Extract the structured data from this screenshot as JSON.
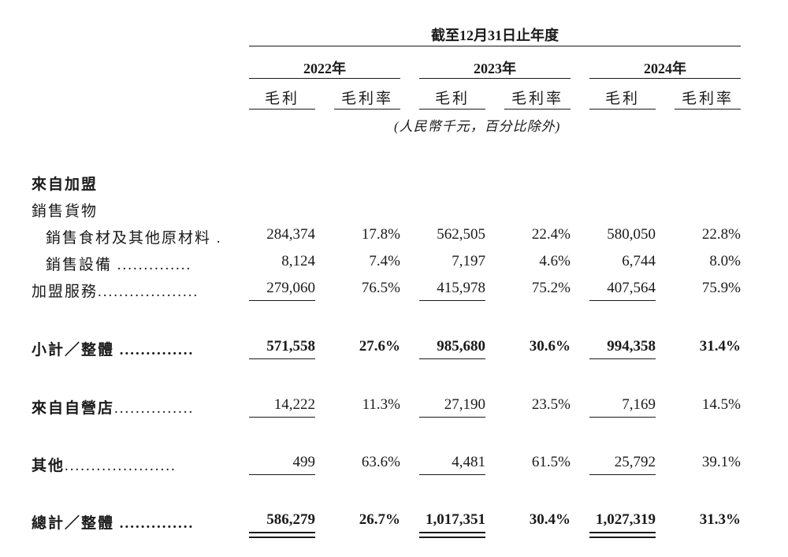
{
  "header": {
    "period_title": "截至12月31日止年度",
    "years": [
      "2022年",
      "2023年",
      "2024年"
    ],
    "col_gross_profit": "毛利",
    "col_gross_margin": "毛利率",
    "unit_note": "(人民幣千元，百分比除外)"
  },
  "rows": {
    "franchise_heading": "來自加盟",
    "sales_goods_heading": "銷售貨物",
    "food_ingredients": {
      "label": "銷售食材及其他原材料",
      "dots": ".",
      "values": [
        "284,374",
        "17.8%",
        "562,505",
        "22.4%",
        "580,050",
        "22.8%"
      ]
    },
    "equipment": {
      "label": "銷售設備",
      "dots": "..............",
      "values": [
        "8,124",
        "7.4%",
        "7,197",
        "4.6%",
        "6,744",
        "8.0%"
      ]
    },
    "franchise_services": {
      "label": "加盟服務",
      "dots": "...................",
      "values": [
        "279,060",
        "76.5%",
        "415,978",
        "75.2%",
        "407,564",
        "75.9%"
      ]
    },
    "subtotal": {
      "label": "小計／整體",
      "dots": "..............",
      "values": [
        "571,558",
        "27.6%",
        "985,680",
        "30.6%",
        "994,358",
        "31.4%"
      ]
    },
    "self_operated": {
      "label": "來自自營店",
      "dots": "...............",
      "values": [
        "14,222",
        "11.3%",
        "27,190",
        "23.5%",
        "7,169",
        "14.5%"
      ]
    },
    "others": {
      "label": "其他",
      "dots": ".....................",
      "values": [
        "499",
        "63.6%",
        "4,481",
        "61.5%",
        "25,792",
        "39.1%"
      ]
    },
    "total": {
      "label": "總計／整體",
      "dots": "..............",
      "values": [
        "586,279",
        "26.7%",
        "1,017,351",
        "30.4%",
        "1,027,319",
        "31.3%"
      ]
    }
  }
}
